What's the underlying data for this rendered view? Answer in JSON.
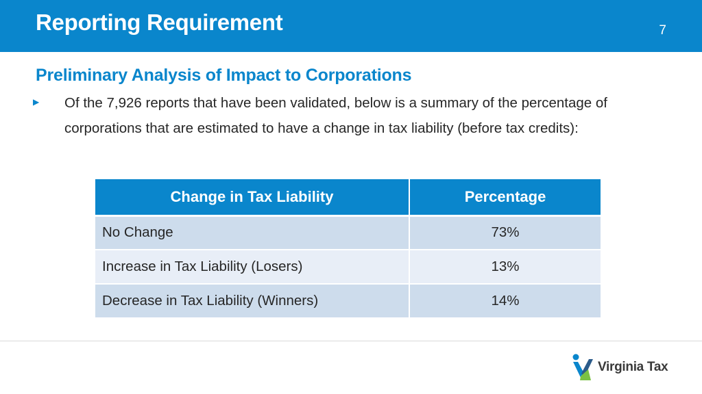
{
  "header": {
    "title": "Reporting Requirement",
    "page_number": "7",
    "background_color": "#0a86cc"
  },
  "content": {
    "subtitle": "Preliminary Analysis of Impact to Corporations",
    "bullet_icon": "triangle-bullet-icon",
    "bullet_text": "Of the 7,926 reports that have been validated, below is a summary of the percentage of corporations that are estimated to have a change in tax liability (before tax credits):"
  },
  "table": {
    "headers": [
      "Change in Tax Liability",
      "Percentage"
    ],
    "rows": [
      {
        "label": "No Change",
        "value": "73%"
      },
      {
        "label": "Increase in Tax Liability (Losers)",
        "value": "13%"
      },
      {
        "label": "Decrease in Tax Liability (Winners)",
        "value": "14%"
      }
    ]
  },
  "footer": {
    "logo_text": "Virginia Tax",
    "logo_icon": "virginia-tax-logo-icon",
    "logo_colors": {
      "blue": "#0a86cc",
      "green": "#7ac143",
      "dark": "#2b5b8a"
    }
  }
}
